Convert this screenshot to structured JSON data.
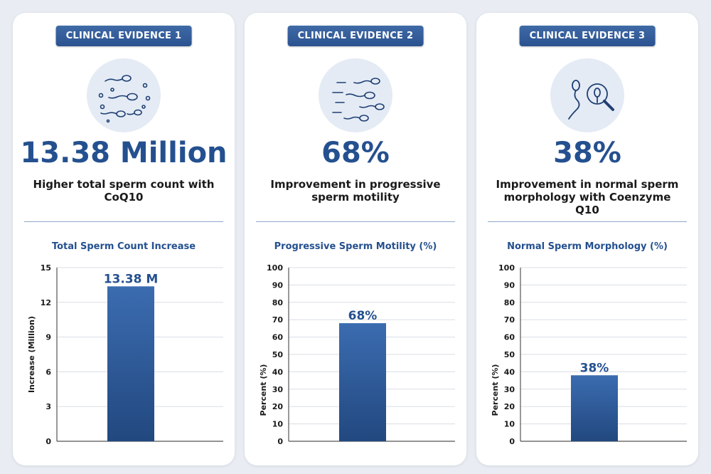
{
  "colors": {
    "accent": "#24508f",
    "bar": "#2d5a9a",
    "icon_stroke": "#1f3f73",
    "icon_bg": "#e4ebf5",
    "grid": "#d8dde5"
  },
  "cards": [
    {
      "badge": "CLINICAL EVIDENCE 1",
      "icon": "sperm-cells-icon",
      "stat": "13.38 Million",
      "description": "Higher total sperm count with CoQ10",
      "chart_title": "Total Sperm Count Increase"
    },
    {
      "badge": "CLINICAL EVIDENCE 2",
      "icon": "motile-sperm-icon",
      "stat": "68%",
      "description": "Improvement in progressive sperm motility",
      "chart_title": "Progressive Sperm Motility (%)"
    },
    {
      "badge": "CLINICAL EVIDENCE 3",
      "icon": "magnified-sperm-icon",
      "stat": "38%",
      "description": "Improvement in normal sperm morphology with Coenzyme Q10",
      "chart_title": "Normal Sperm Morphology (%)"
    }
  ],
  "chart_data": [
    {
      "type": "bar",
      "title": "Total Sperm Count Increase",
      "categories": [
        ""
      ],
      "values": [
        13.38
      ],
      "data_labels": [
        "13.38 M"
      ],
      "xlabel": "",
      "ylabel": "Increase (Million)",
      "ylim": [
        0,
        15
      ],
      "yticks": [
        0,
        3,
        6,
        9,
        12,
        15
      ],
      "grid": true
    },
    {
      "type": "bar",
      "title": "Progressive Sperm Motility (%)",
      "categories": [
        ""
      ],
      "values": [
        68
      ],
      "data_labels": [
        "68%"
      ],
      "xlabel": "",
      "ylabel": "Percent (%)",
      "ylim": [
        0,
        100
      ],
      "yticks": [
        0,
        10,
        20,
        30,
        40,
        50,
        60,
        70,
        80,
        90,
        100
      ],
      "grid": true
    },
    {
      "type": "bar",
      "title": "Normal Sperm Morphology (%)",
      "categories": [
        ""
      ],
      "values": [
        38
      ],
      "data_labels": [
        "38%"
      ],
      "xlabel": "",
      "ylabel": "Percent (%)",
      "ylim": [
        0,
        100
      ],
      "yticks": [
        0,
        10,
        20,
        30,
        40,
        50,
        60,
        70,
        80,
        90,
        100
      ],
      "grid": true
    }
  ]
}
